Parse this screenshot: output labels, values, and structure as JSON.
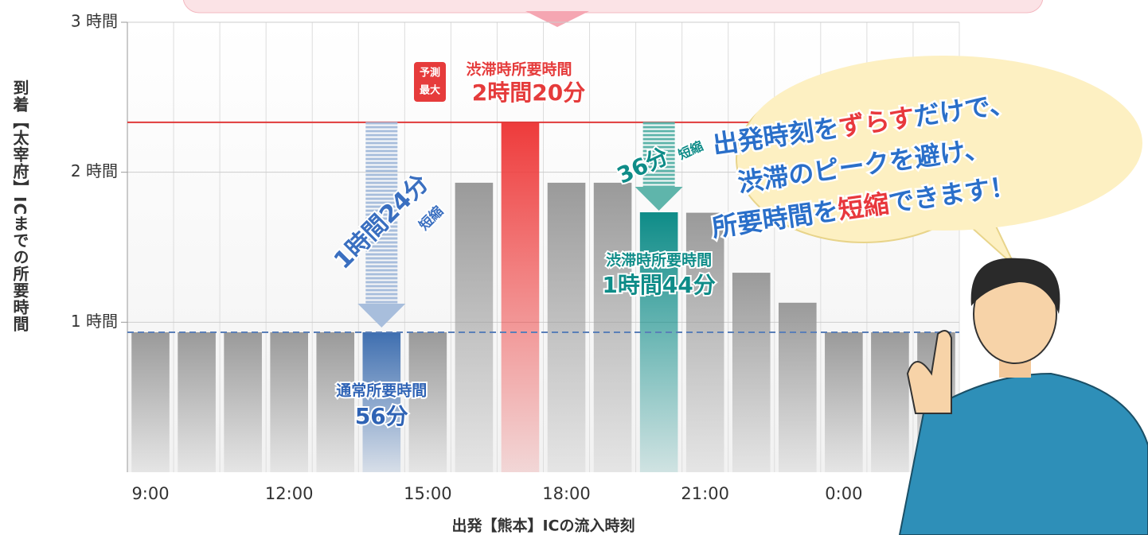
{
  "chart_data": {
    "type": "bar",
    "categories": [
      "9:00",
      null,
      null,
      "12:00",
      null,
      null,
      "15:00",
      null,
      null,
      "18:00",
      null,
      null,
      "21:00",
      null,
      null,
      "0:00",
      null,
      null
    ],
    "values": [
      0.933,
      0.933,
      0.933,
      0.933,
      0.933,
      0.933,
      0.933,
      1.93,
      2.333,
      1.93,
      1.93,
      1.733,
      1.73,
      1.33,
      1.13,
      0.933,
      0.933,
      0.933
    ],
    "colors": [
      "#9a9a9a",
      "#9a9a9a",
      "#9a9a9a",
      "#9a9a9a",
      "#9a9a9a",
      "#3f6fb0",
      "#9a9a9a",
      "#9a9a9a",
      "#ee3b3b",
      "#9a9a9a",
      "#9a9a9a",
      "#0e8c88",
      "#9a9a9a",
      "#9a9a9a",
      "#9a9a9a",
      "#9a9a9a",
      "#9a9a9a",
      "#9a9a9a"
    ],
    "ylim": [
      0,
      3
    ],
    "yticks": [
      {
        "value": 1,
        "label": "1 時間"
      },
      {
        "value": 2,
        "label": "2 時間"
      },
      {
        "value": 3,
        "label": "3 時間"
      }
    ],
    "grid": true,
    "xlabel": "出発【熊本】ICの流入時刻",
    "ylabel": "到着【太宰府】ICまでの所要時間",
    "reference_lines": [
      {
        "value": 2.333,
        "color": "#e03a3a",
        "style": "solid"
      },
      {
        "value": 0.933,
        "color": "#5a7fb8",
        "style": "dashed"
      }
    ],
    "annotations": {
      "peak": {
        "badge": [
          "予測",
          "最大"
        ],
        "label": "渋滞時所要時間",
        "value": "2時間20分"
      },
      "normal": {
        "label": "通常所要時間",
        "value": "56分"
      },
      "shifted": {
        "label": "渋滞時所要時間",
        "value": "1時間44分"
      },
      "saving_early": {
        "value": "1時間24分",
        "label": "短縮"
      },
      "saving_late": {
        "value": "36分",
        "label": "短縮"
      }
    },
    "bubble": {
      "highlight_color": "#e8383d",
      "lines": [
        [
          {
            "text": "出発時刻を",
            "highlight": false
          },
          {
            "text": "ずらす",
            "highlight": true
          },
          {
            "text": "だけで、",
            "highlight": false
          }
        ],
        [
          {
            "text": "渋滞のピークを避け、",
            "highlight": false
          }
        ],
        [
          {
            "text": "所要時間を",
            "highlight": false
          },
          {
            "text": "短縮",
            "highlight": true
          },
          {
            "text": "できます！",
            "highlight": false
          }
        ]
      ]
    }
  }
}
